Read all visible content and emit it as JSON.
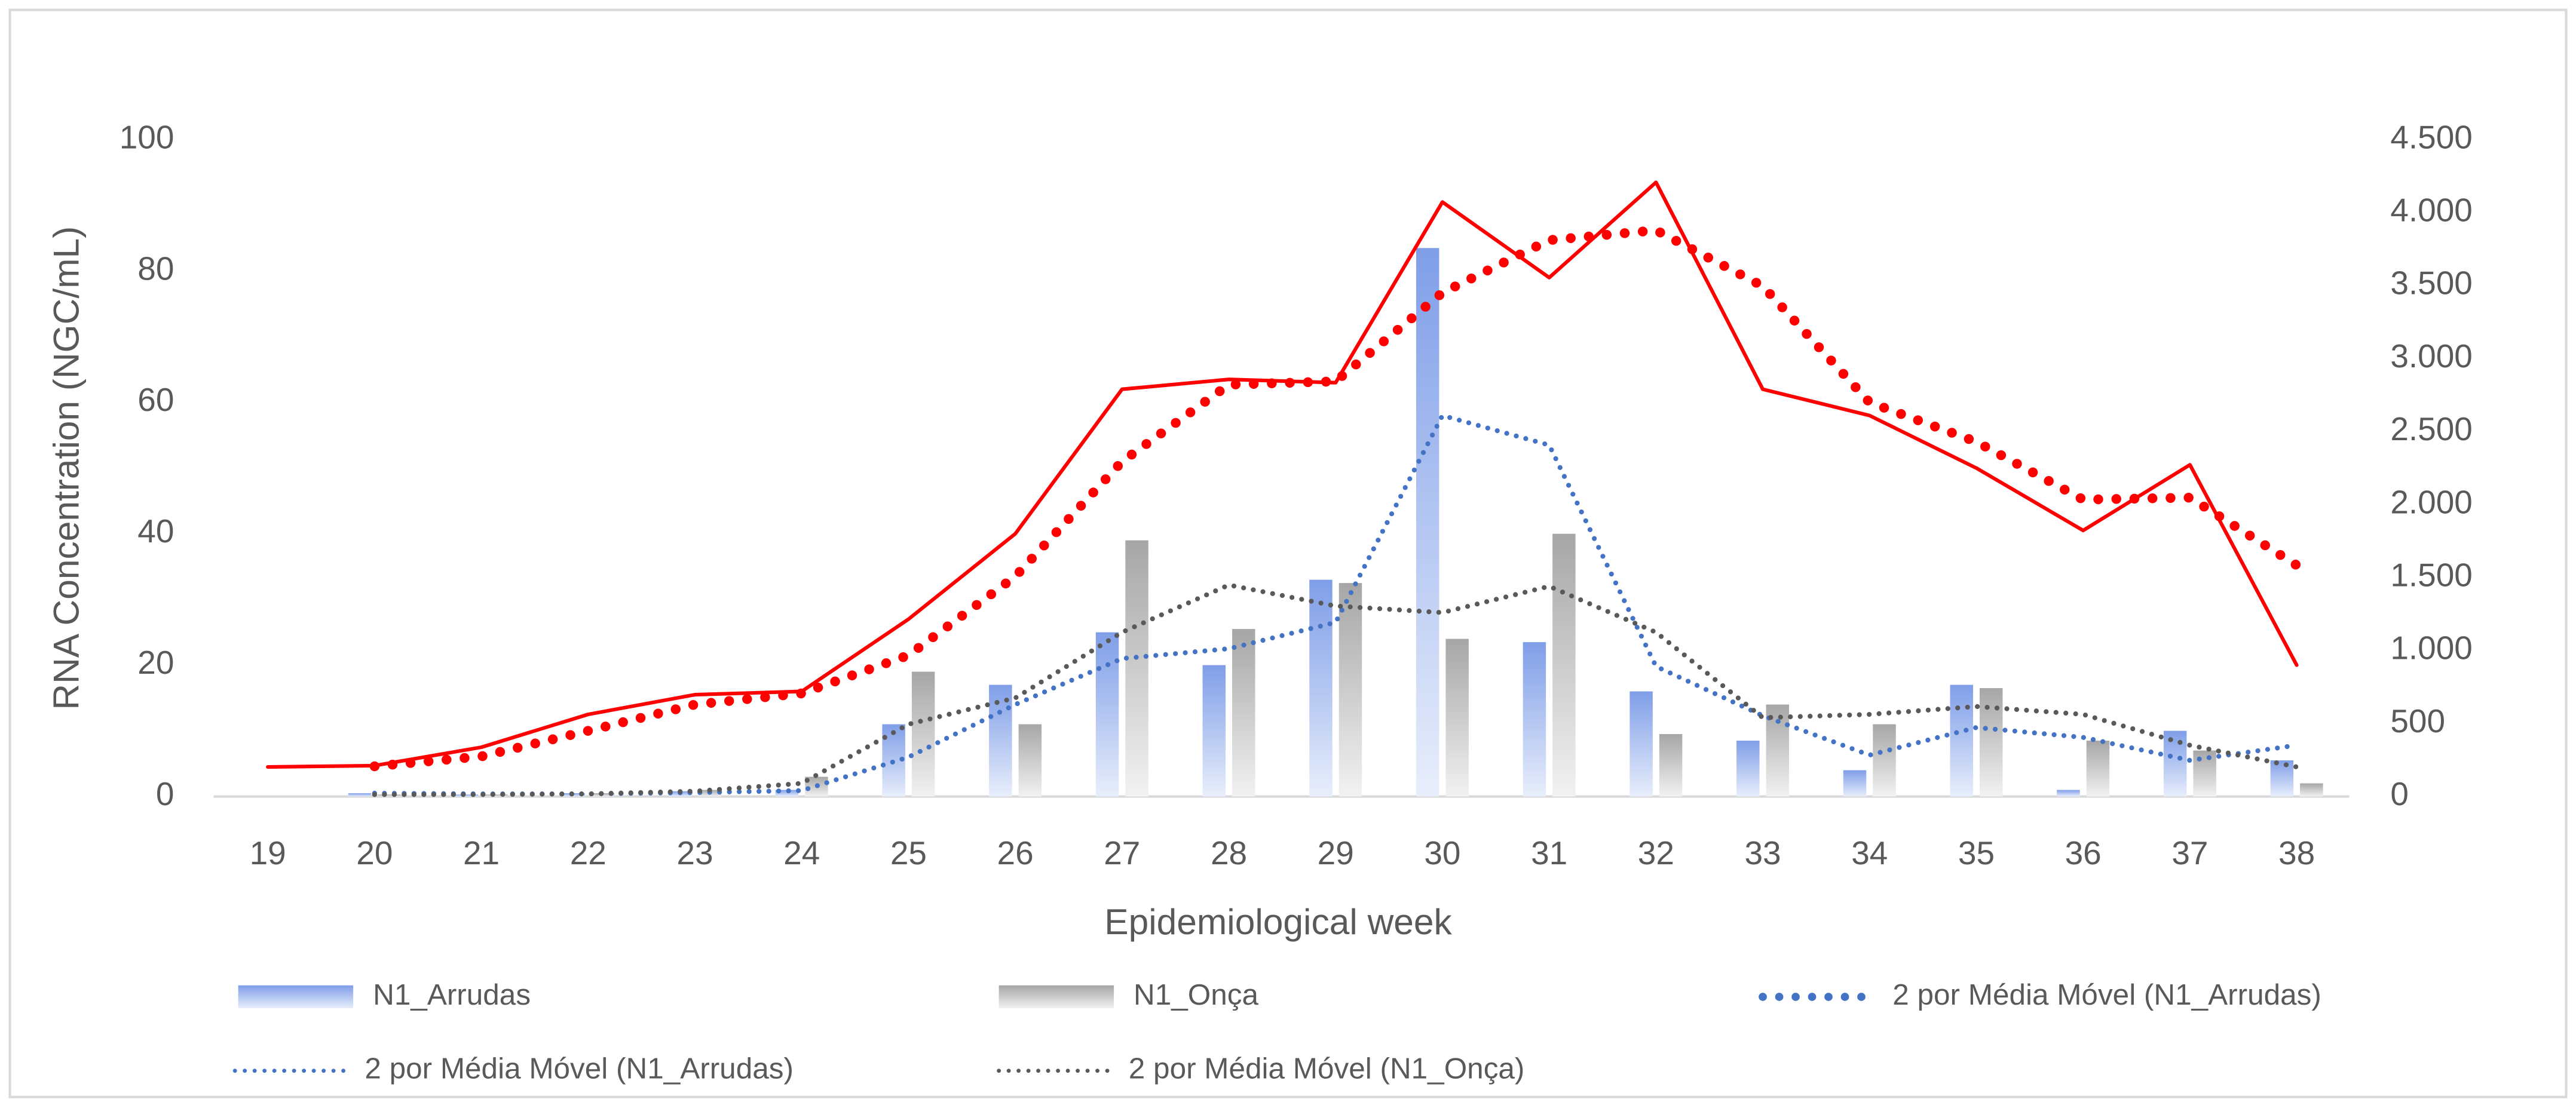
{
  "chart_data": {
    "type": "bar",
    "xlabel": "Epidemiological week",
    "ylabel": "RNA Concentration (NGC/mL)",
    "categories": [
      "19",
      "20",
      "21",
      "22",
      "23",
      "24",
      "25",
      "26",
      "27",
      "28",
      "29",
      "30",
      "31",
      "32",
      "33",
      "34",
      "35",
      "36",
      "37",
      "38"
    ],
    "ylim": [
      0,
      100
    ],
    "yticks": [
      0,
      20,
      40,
      60,
      80,
      100
    ],
    "y2lim": [
      0,
      4500
    ],
    "y2ticks": [
      0,
      500,
      {
        "value": 1000,
        "label": "1.000"
      },
      {
        "value": 1500,
        "label": "1.500"
      },
      {
        "value": 2000,
        "label": "2.000"
      },
      {
        "value": 2500,
        "label": "2.500"
      },
      {
        "value": 3000,
        "label": "3.000"
      },
      {
        "value": 3500,
        "label": "3.500"
      },
      {
        "value": 4000,
        "label": "4.000"
      },
      {
        "value": 4500,
        "label": "4.500"
      }
    ],
    "series": [
      {
        "type": "bar",
        "color": "#7f9ee8",
        "values": [
          0,
          0.5,
          0.3,
          0.5,
          0.8,
          1,
          11,
          17,
          25,
          20,
          33,
          83.5,
          23.5,
          16,
          8.5,
          4,
          17,
          1,
          10,
          5.5
        ]
      },
      {
        "type": "bar",
        "color": "#a6a6a6",
        "values": [
          0,
          0.3,
          0.3,
          0.5,
          1,
          3,
          19,
          11,
          39,
          25.5,
          32.5,
          24,
          40,
          9.5,
          14,
          11,
          16.5,
          8.5,
          7,
          2
        ]
      },
      {
        "type": "line",
        "style": "solid",
        "color": "#ff0000",
        "values": [
          4.5,
          4.7,
          7.5,
          12.5,
          15.5,
          16,
          27,
          40,
          62,
          63.5,
          63,
          90.5,
          79,
          93.5,
          62,
          58,
          50,
          40.5,
          50.5,
          20
        ]
      },
      {
        "type": "line",
        "style": "dots",
        "color": "#ff0000",
        "values": [
          null,
          4.6,
          6.1,
          10,
          14,
          15.7,
          21.5,
          33.5,
          51,
          62.7,
          63.2,
          76.7,
          84.7,
          86.2,
          77.7,
          60,
          54,
          45.2,
          45.5,
          35.2
        ]
      },
      {
        "type": "line",
        "style": "dotted",
        "color": "#4472c4",
        "values": [
          null,
          0.5,
          0.4,
          0.4,
          0.6,
          0.9,
          6,
          14,
          21,
          22.5,
          26.5,
          58,
          53.5,
          19.8,
          12.3,
          6.3,
          10.5,
          9,
          5.5,
          7.8
        ]
      },
      {
        "type": "line",
        "style": "dotted",
        "color": "#595959",
        "values": [
          null,
          0.3,
          0.3,
          0.4,
          0.8,
          2,
          11,
          15,
          25,
          32.2,
          29,
          28,
          32,
          25,
          12,
          12.5,
          13.7,
          12.5,
          7.8,
          4.5
        ]
      }
    ],
    "legend": [
      {
        "name": "N1_Arrudas",
        "style": "bar",
        "color": "#7f9ee8"
      },
      {
        "name": "N1_Onça",
        "style": "bar",
        "color": "#a6a6a6"
      },
      {
        "name": "2 por Média Móvel (N1_Arrudas)",
        "style": "dots",
        "color": "#4472c4"
      },
      {
        "name": "2 por Média Móvel (N1_Arrudas)",
        "style": "dotted",
        "color": "#4472c4"
      },
      {
        "name": "2 por Média Móvel (N1_Onça)",
        "style": "dotted",
        "color": "#595959"
      }
    ]
  }
}
